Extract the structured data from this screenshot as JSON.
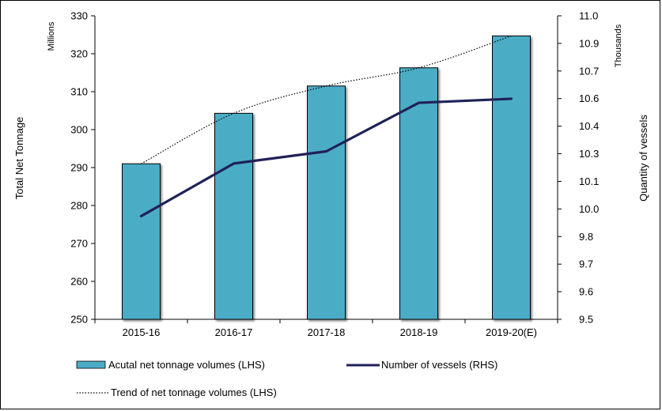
{
  "chart_data": {
    "type": "bar+line",
    "categories": [
      "2015-16",
      "2016-17",
      "2017-18",
      "2018-19",
      "2019-20(E)"
    ],
    "series": [
      {
        "name": "Acutal net tonnage volumes (LHS)",
        "kind": "bar",
        "axis": "left",
        "values": [
          291,
          304.3,
          311.5,
          316.3,
          324.7
        ],
        "color": "#4bacc6"
      },
      {
        "name": "Number of vessels (RHS)",
        "kind": "line",
        "axis": "right",
        "values": [
          10.01,
          10.27,
          10.33,
          10.57,
          10.59
        ],
        "color": "#1f2258"
      },
      {
        "name": "Trend of net tonnage volumes (LHS)",
        "kind": "trend",
        "axis": "left",
        "values": [
          291,
          304.3,
          311.5,
          316.3,
          324.7
        ],
        "color": "#000000"
      }
    ],
    "left_axis": {
      "label": "Total Net Tonnage",
      "unit": "Millions",
      "min": 250,
      "max": 330,
      "ticks": [
        250,
        260,
        270,
        280,
        290,
        300,
        310,
        320,
        330
      ],
      "tick_labels": [
        "250",
        "260",
        "270",
        "280",
        "290",
        "300",
        "310",
        "320",
        "330"
      ]
    },
    "right_axis": {
      "label": "Quantity of vessels",
      "unit": "Thousands",
      "min": 9.5,
      "max": 11.0,
      "tick_labels": [
        "9.5",
        "9.6",
        "9.7",
        "9.8",
        "10.0",
        "10.1",
        "10.3",
        "10.4",
        "10.6",
        "10.7",
        "10.9",
        "11.0"
      ]
    },
    "legend": [
      {
        "label": "Acutal net tonnage volumes (LHS)",
        "kind": "bar"
      },
      {
        "label": "Number of vessels (RHS)",
        "kind": "line"
      },
      {
        "label": "Trend of net tonnage volumes (LHS)",
        "kind": "trend"
      }
    ],
    "legend_position": "bottom"
  }
}
